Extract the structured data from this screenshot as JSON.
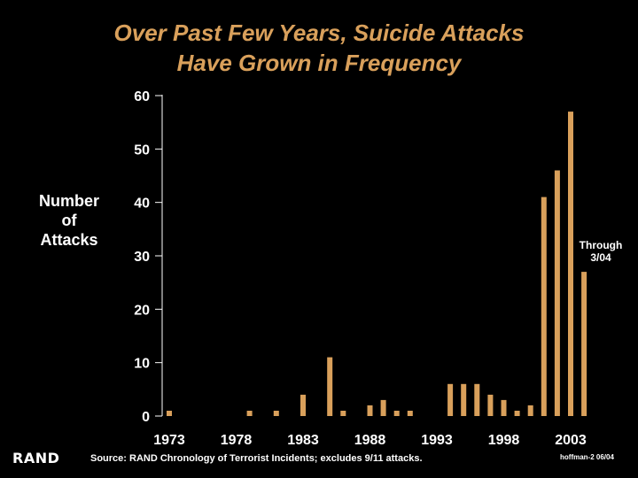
{
  "title_line1": "Over Past Few Years, Suicide Attacks",
  "title_line2": "Have Grown in Frequency",
  "ylabel_lines": [
    "Number",
    "of",
    "Attacks"
  ],
  "annotation_lines": [
    "Through",
    "3/04"
  ],
  "logo": "RAND",
  "source": "Source:  RAND Chronology of Terrorist Incidents; excludes 9/11 attacks.",
  "ref": "hoffman-2  06/04",
  "colors": {
    "bar": "#D9A05B",
    "title": "#D9A05B",
    "axis": "#ffffff",
    "background": "#000000"
  },
  "chart_data": {
    "type": "bar",
    "title": "Over Past Few Years, Suicide Attacks Have Grown in Frequency",
    "ylabel": "Number of Attacks",
    "xlabel": "",
    "ylim": [
      0,
      60
    ],
    "yticks": [
      0,
      10,
      20,
      30,
      40,
      50,
      60
    ],
    "xticks": [
      "1973",
      "1978",
      "1983",
      "1988",
      "1993",
      "1998",
      "2003"
    ],
    "categories": [
      "1973",
      "1974",
      "1975",
      "1976",
      "1977",
      "1978",
      "1979",
      "1980",
      "1981",
      "1982",
      "1983",
      "1984",
      "1985",
      "1986",
      "1987",
      "1988",
      "1989",
      "1990",
      "1991",
      "1992",
      "1993",
      "1994",
      "1995",
      "1996",
      "1997",
      "1998",
      "1999",
      "2000",
      "2001",
      "2002",
      "2003",
      "2004"
    ],
    "values": [
      1,
      0,
      0,
      0,
      0,
      0,
      1,
      0,
      1,
      0,
      4,
      0,
      11,
      1,
      0,
      2,
      3,
      1,
      1,
      0,
      0,
      6,
      6,
      6,
      4,
      3,
      1,
      2,
      41,
      46,
      57,
      27
    ],
    "grid": false,
    "legend": "none",
    "annotation": "Through 3/04"
  }
}
